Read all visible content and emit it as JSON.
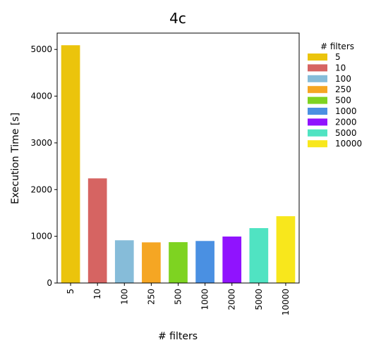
{
  "chart_data": {
    "type": "bar",
    "title": "4c",
    "xlabel": "# filters",
    "ylabel": "Execution Time [s]",
    "categories": [
      "5",
      "10",
      "100",
      "250",
      "500",
      "1000",
      "2000",
      "5000",
      "10000"
    ],
    "values": [
      5090,
      2240,
      915,
      870,
      875,
      900,
      995,
      1175,
      1430
    ],
    "colors": [
      "#ebc40c",
      "#d66462",
      "#86bcd9",
      "#f5a623",
      "#7ed321",
      "#4a90e2",
      "#9013fe",
      "#50e3c2",
      "#f8e71c"
    ],
    "ylim": [
      0,
      5350
    ],
    "yticks": [
      0,
      1000,
      2000,
      3000,
      4000,
      5000
    ],
    "grid": false,
    "legend": {
      "title": "# filters",
      "placement": "outside-right",
      "entries": [
        "5",
        "10",
        "100",
        "250",
        "500",
        "1000",
        "2000",
        "5000",
        "10000"
      ]
    }
  }
}
